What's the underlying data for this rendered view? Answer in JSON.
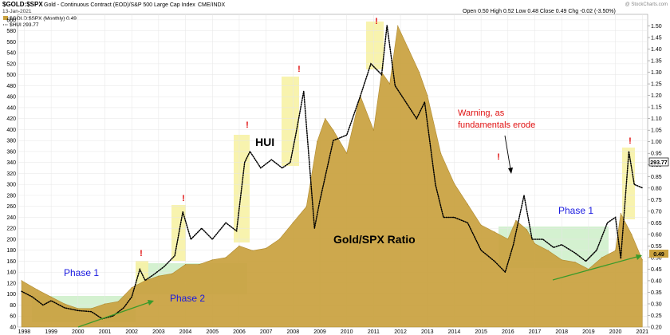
{
  "header": {
    "title_symbol": "$GOLD:$SPX",
    "title_desc": "Gold - Continuous Contract (EOD)/S&P 500 Large Cap Index",
    "exchange": "CME/INDX",
    "date": "13-Jan-2021",
    "quote": "Open 0.50  High 0.52  Low 0.48  Close 0.49  Chg -0.02 (-3.50%)",
    "watermark": "@ StockCharts.com"
  },
  "legend": {
    "ratio": "$GOLD:$SPX (Monthly) 0.49",
    "hui": "$HUI 293.77"
  },
  "annotations": {
    "phase1_left": "Phase 1",
    "phase2": "Phase 2",
    "phase1_right": "Phase 1",
    "hui": "HUI",
    "ratio": "Gold/SPX Ratio",
    "warning_line1": "Warning, as",
    "warning_line2": "fundamentals erode",
    "exclamation": "!"
  },
  "last_values": {
    "hui": "293.77",
    "ratio": "0.49"
  },
  "colors": {
    "ratio_fill": "#C9A13E",
    "ratio_line": "#B08A2E",
    "hui_line": "#000000",
    "yellow_box": "#F7F2A5",
    "green_box": "#CDEFC8",
    "phase_text": "#1A1AE0",
    "warning_text": "#E01010",
    "arrow": "#3A9A2A"
  },
  "chart_data": {
    "type": "area",
    "x_axis_labels": [
      "1998",
      "1999",
      "2000",
      "2001",
      "2002",
      "2003",
      "2004",
      "2005",
      "2006",
      "2007",
      "2008",
      "2009",
      "2010",
      "2011",
      "2012",
      "2013",
      "2014",
      "2015",
      "2016",
      "2017",
      "2018",
      "2019",
      "2020",
      "2021"
    ],
    "left_axis": {
      "label": "HUI",
      "ylim": [
        40,
        610
      ],
      "ticks": [
        40,
        60,
        80,
        100,
        120,
        140,
        160,
        180,
        200,
        220,
        240,
        260,
        280,
        300,
        320,
        340,
        360,
        380,
        400,
        420,
        440,
        460,
        480,
        500,
        520,
        540,
        560,
        580,
        600
      ]
    },
    "right_axis": {
      "label": "Gold/SPX ratio",
      "ylim": [
        0.2,
        1.55
      ],
      "ticks": [
        "0.20",
        "0.25",
        "0.30",
        "0.35",
        "0.40",
        "0.45",
        "0.50",
        "0.55",
        "0.60",
        "0.65",
        "0.70",
        "0.75",
        "0.80",
        "0.85",
        "0.90",
        "0.95",
        "1.00",
        "1.05",
        "1.10",
        "1.15",
        "1.20",
        "1.25",
        "1.30",
        "1.35",
        "1.40",
        "1.45",
        "1.50"
      ]
    },
    "series": [
      {
        "name": "$GOLD:$SPX (Monthly)",
        "axis": "right",
        "style": "area",
        "x": [
          1997.9,
          1998.5,
          1999.0,
          1999.5,
          2000.0,
          2000.5,
          2001.0,
          2001.5,
          2002.0,
          2002.5,
          2003.0,
          2003.5,
          2004.0,
          2004.5,
          2005.0,
          2005.5,
          2006.0,
          2006.5,
          2007.0,
          2007.5,
          2008.0,
          2008.5,
          2008.9,
          2009.2,
          2009.5,
          2010.0,
          2010.5,
          2011.0,
          2011.3,
          2011.6,
          2011.9,
          2012.3,
          2012.7,
          2013.0,
          2013.5,
          2014.0,
          2014.5,
          2015.0,
          2015.5,
          2016.0,
          2016.3,
          2016.7,
          2017.0,
          2017.5,
          2018.0,
          2018.5,
          2019.0,
          2019.5,
          2020.0,
          2020.2,
          2020.6,
          2021.0
        ],
        "values": [
          0.4,
          0.36,
          0.33,
          0.3,
          0.28,
          0.28,
          0.3,
          0.31,
          0.37,
          0.4,
          0.42,
          0.43,
          0.47,
          0.47,
          0.49,
          0.5,
          0.55,
          0.53,
          0.54,
          0.58,
          0.65,
          0.72,
          1.0,
          1.1,
          1.05,
          0.95,
          1.2,
          1.05,
          1.3,
          1.25,
          1.5,
          1.4,
          1.3,
          1.2,
          0.95,
          0.82,
          0.73,
          0.64,
          0.61,
          0.58,
          0.66,
          0.62,
          0.56,
          0.53,
          0.49,
          0.48,
          0.45,
          0.5,
          0.53,
          0.69,
          0.6,
          0.49
        ]
      },
      {
        "name": "$HUI",
        "axis": "left",
        "style": "dotted-line",
        "x": [
          1997.9,
          1998.3,
          1998.7,
          1999.0,
          1999.5,
          2000.0,
          2000.5,
          2000.9,
          2001.3,
          2001.7,
          2002.0,
          2002.3,
          2002.5,
          2002.8,
          2003.2,
          2003.6,
          2003.9,
          2004.2,
          2004.6,
          2005.0,
          2005.5,
          2005.9,
          2006.2,
          2006.4,
          2006.8,
          2007.2,
          2007.6,
          2007.9,
          2008.1,
          2008.4,
          2008.8,
          2009.0,
          2009.5,
          2010.0,
          2010.5,
          2010.9,
          2011.3,
          2011.5,
          2011.8,
          2012.2,
          2012.6,
          2012.9,
          2013.3,
          2013.6,
          2014.0,
          2014.5,
          2015.0,
          2015.5,
          2015.9,
          2016.2,
          2016.6,
          2016.9,
          2017.3,
          2017.7,
          2018.0,
          2018.5,
          2018.9,
          2019.3,
          2019.7,
          2020.0,
          2020.2,
          2020.5,
          2020.7,
          2021.0
        ],
        "values": [
          105,
          95,
          80,
          88,
          75,
          70,
          68,
          55,
          60,
          75,
          95,
          145,
          125,
          135,
          150,
          170,
          250,
          200,
          220,
          200,
          230,
          215,
          340,
          360,
          330,
          345,
          330,
          340,
          390,
          470,
          220,
          270,
          380,
          390,
          460,
          520,
          500,
          590,
          480,
          450,
          420,
          450,
          300,
          240,
          240,
          230,
          180,
          160,
          140,
          190,
          280,
          200,
          200,
          185,
          190,
          175,
          160,
          180,
          230,
          240,
          165,
          360,
          300,
          293.77
        ]
      }
    ]
  }
}
